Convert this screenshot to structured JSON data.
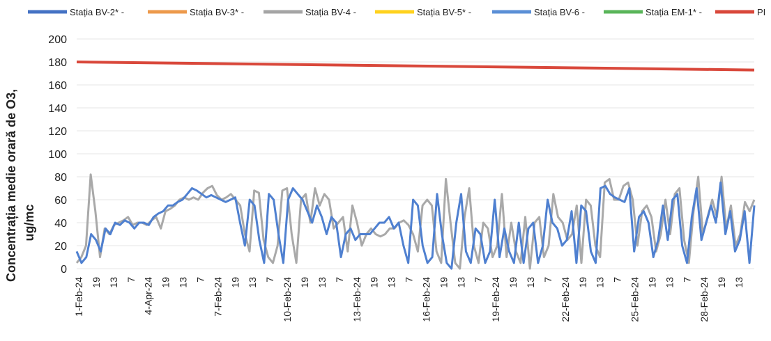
{
  "chart_data": {
    "type": "line",
    "title": "",
    "ylabel_line1": "Concentrația medie orară de O3,",
    "ylabel_line2": "ug/mc",
    "xlabel": "",
    "ylim": [
      0,
      200
    ],
    "yticks": [
      0,
      20,
      40,
      60,
      80,
      100,
      120,
      140,
      160,
      180,
      200
    ],
    "grid": true,
    "legend_position": "top",
    "x_tick_labels": [
      "1-Feb-24",
      "19",
      "13",
      "7",
      "4-Apr-24",
      "19",
      "13",
      "7",
      "7-Feb-24",
      "19",
      "13",
      "7",
      "10-Feb-24",
      "19",
      "13",
      "7",
      "13-Feb-24",
      "19",
      "13",
      "7",
      "16-Feb-24",
      "19",
      "13",
      "7",
      "19-Feb-24",
      "19",
      "13",
      "7",
      "22-Feb-24",
      "19",
      "13",
      "7",
      "25-Feb-24",
      "19",
      "13",
      "7",
      "28-Feb-24",
      "19",
      "13"
    ],
    "legend": [
      {
        "name": "Stația BV-2* -",
        "color": "#4472c4"
      },
      {
        "name": "Stația BV-3* -",
        "color": "#ed9a4c"
      },
      {
        "name": "Stația BV-4 -",
        "color": "#a5a5a5"
      },
      {
        "name": "Stația BV-5* -",
        "color": "#ffd21f"
      },
      {
        "name": "Stația BV-6 -",
        "color": "#5b8fd6"
      },
      {
        "name": "Stația EM-1* -",
        "color": "#5ab55a"
      },
      {
        "name": "PI",
        "color": "#d9483b"
      }
    ],
    "series": [
      {
        "key": "BV-4",
        "color": "#a9a9a9",
        "values": [
          5,
          10,
          20,
          82,
          50,
          10,
          35,
          30,
          38,
          40,
          42,
          45,
          38,
          40,
          40,
          38,
          42,
          45,
          35,
          50,
          52,
          55,
          60,
          62,
          60,
          62,
          60,
          66,
          70,
          72,
          64,
          60,
          62,
          65,
          60,
          55,
          30,
          15,
          68,
          66,
          25,
          10,
          5,
          20,
          68,
          70,
          30,
          5,
          60,
          65,
          40,
          70,
          55,
          65,
          60,
          35,
          40,
          45,
          15,
          55,
          40,
          20,
          30,
          35,
          30,
          28,
          30,
          35,
          35,
          40,
          42,
          38,
          30,
          15,
          55,
          60,
          55,
          15,
          5,
          78,
          40,
          5,
          0,
          45,
          70,
          20,
          5,
          40,
          35,
          10,
          20,
          65,
          10,
          40,
          15,
          5,
          45,
          0,
          40,
          45,
          10,
          20,
          65,
          45,
          40,
          25,
          30,
          55,
          5,
          60,
          55,
          20,
          10,
          75,
          78,
          60,
          60,
          72,
          75,
          60,
          20,
          50,
          55,
          45,
          15,
          30,
          60,
          30,
          65,
          70,
          25,
          5,
          50,
          80,
          30,
          45,
          60,
          45,
          80,
          35,
          55,
          20,
          30,
          58,
          50,
          60
        ]
      },
      {
        "key": "BV-6",
        "color": "#4f80d0",
        "values": [
          15,
          5,
          10,
          30,
          25,
          15,
          35,
          30,
          40,
          38,
          42,
          40,
          35,
          40,
          40,
          38,
          45,
          48,
          50,
          55,
          55,
          58,
          60,
          65,
          70,
          68,
          65,
          62,
          64,
          62,
          60,
          58,
          60,
          62,
          40,
          20,
          60,
          55,
          25,
          5,
          65,
          60,
          30,
          5,
          60,
          70,
          65,
          60,
          50,
          40,
          55,
          45,
          30,
          45,
          40,
          10,
          30,
          35,
          25,
          30,
          30,
          30,
          35,
          40,
          40,
          45,
          35,
          40,
          20,
          5,
          60,
          55,
          20,
          5,
          10,
          65,
          30,
          5,
          0,
          40,
          65,
          15,
          5,
          35,
          30,
          5,
          15,
          60,
          10,
          35,
          15,
          5,
          40,
          5,
          35,
          40,
          5,
          20,
          60,
          40,
          35,
          20,
          25,
          50,
          5,
          55,
          50,
          15,
          5,
          70,
          72,
          65,
          62,
          60,
          58,
          70,
          15,
          45,
          50,
          40,
          10,
          25,
          55,
          25,
          60,
          65,
          20,
          5,
          45,
          70,
          25,
          40,
          55,
          40,
          75,
          30,
          50,
          15,
          25,
          50,
          5,
          55
        ]
      },
      {
        "key": "PI",
        "color": "#d9483b",
        "values": [
          180,
          173
        ]
      }
    ]
  }
}
